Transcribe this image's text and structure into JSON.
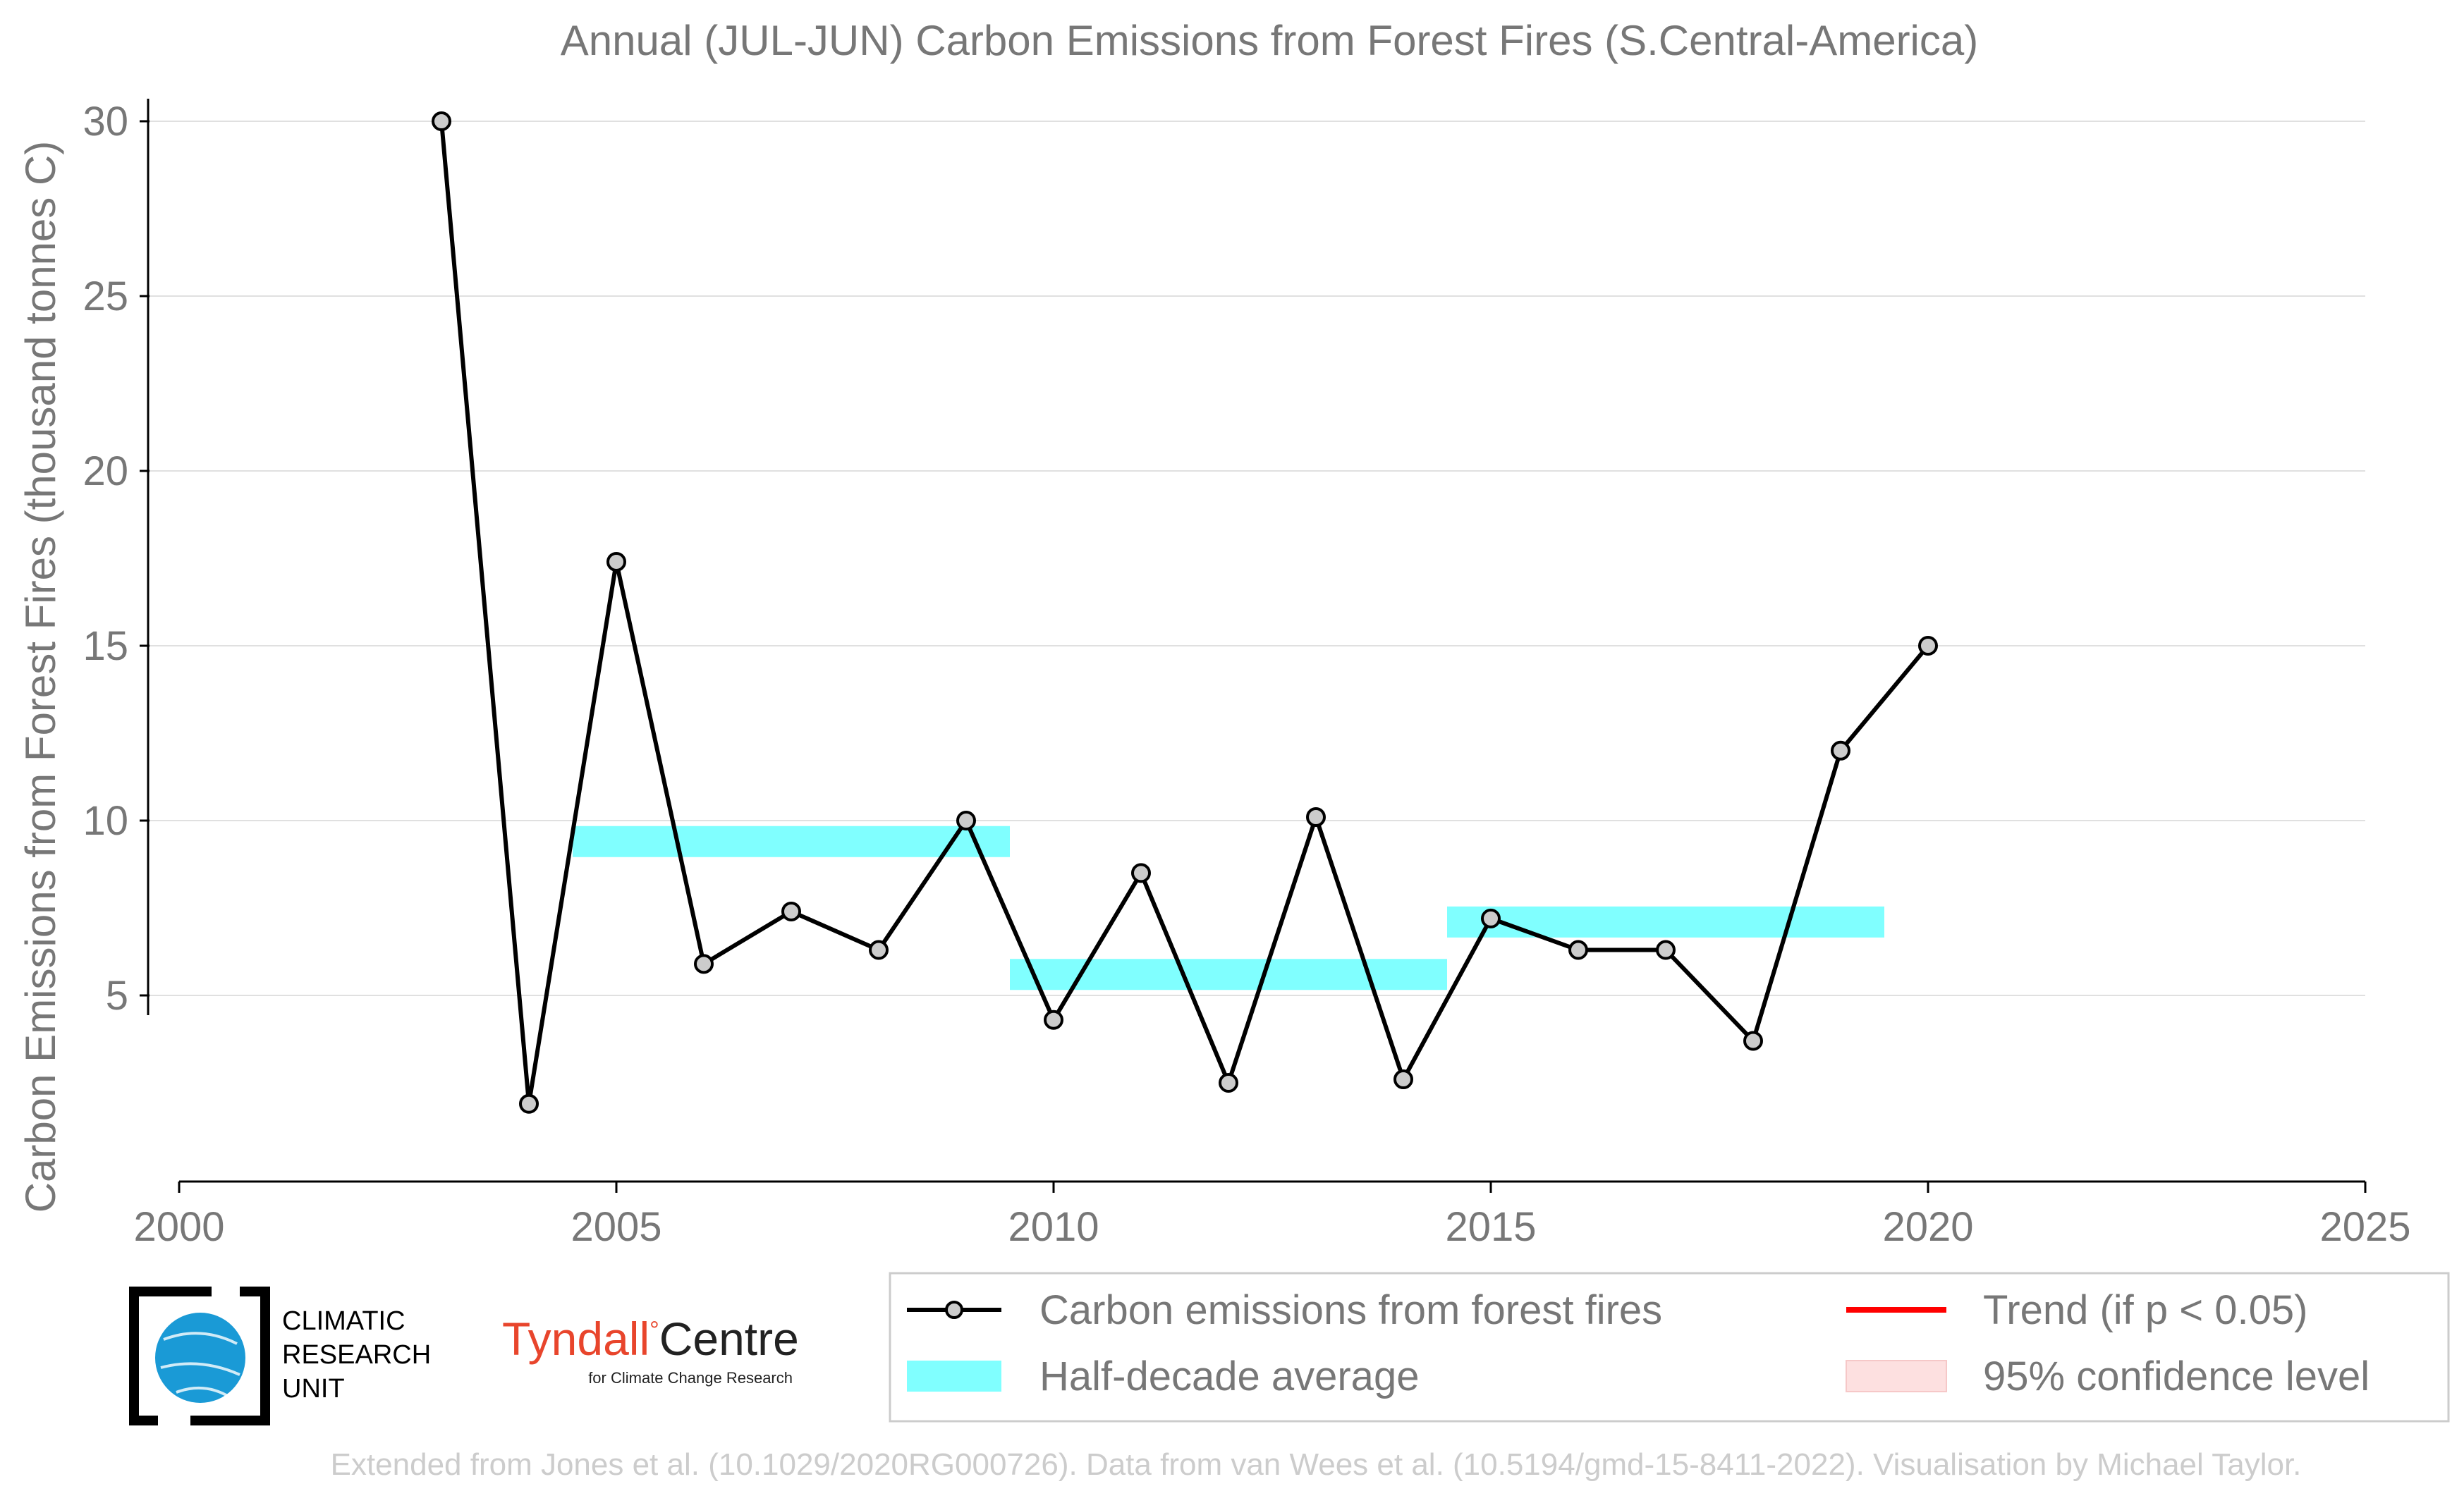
{
  "chart_data": {
    "type": "line",
    "title": "Annual (JUL-JUN) Carbon Emissions from Forest Fires (S.Central-America)",
    "xlabel": "",
    "ylabel": "Carbon Emissions from Forest Fires (thousand tonnes C)",
    "xlim": [
      2000,
      2025
    ],
    "ylim": [
      0,
      31
    ],
    "x_ticks": [
      "2000",
      "2005",
      "2010",
      "2015",
      "2020",
      "2025"
    ],
    "y_ticks": [
      "5",
      "10",
      "15",
      "20",
      "25",
      "30"
    ],
    "grid": "horizontal",
    "series": [
      {
        "name": "Carbon emissions from forest fires",
        "x": [
          2003,
          2004,
          2005,
          2006,
          2007,
          2008,
          2009,
          2010,
          2011,
          2012,
          2013,
          2014,
          2015,
          2016,
          2017,
          2018,
          2019,
          2020
        ],
        "values": [
          30.0,
          1.9,
          17.4,
          5.9,
          7.4,
          6.3,
          10.0,
          4.3,
          8.5,
          2.5,
          10.1,
          2.6,
          7.2,
          6.3,
          6.3,
          3.7,
          12.0,
          15.0
        ],
        "color": "#000000"
      }
    ],
    "half_decade_averages": [
      {
        "x_start": 2004.5,
        "x_end": 2009.5,
        "value": 9.4
      },
      {
        "x_start": 2009.5,
        "x_end": 2014.5,
        "value": 5.6
      },
      {
        "x_start": 2014.5,
        "x_end": 2019.5,
        "value": 7.1
      }
    ],
    "legend": {
      "placement": "bottom-right",
      "entries": [
        {
          "label": "Carbon emissions from forest fires",
          "kind": "line-marker",
          "color": "#000000"
        },
        {
          "label": "Trend (if p < 0.05)",
          "kind": "line",
          "color": "#ff0000"
        },
        {
          "label": "Half-decade average",
          "kind": "band",
          "color": "#80ffff"
        },
        {
          "label": "95% confidence level",
          "kind": "band",
          "color": "#fde0e0"
        }
      ]
    },
    "footer": "Extended from Jones et al. (10.1029/2020RG000726). Data from van Wees et al. (10.5194/gmd-15-8411-2022). Visualisation by Michael Taylor."
  },
  "logos": {
    "cru_lines": [
      "CLIMATIC",
      "RESEARCH",
      "UNIT"
    ],
    "tyndall_name": "Tyndall",
    "tyndall_centre": "Centre",
    "tyndall_sub": "for Climate Change Research"
  },
  "colors": {
    "series": "#000000",
    "marker_fill": "#cccccc",
    "half_decade": "#80ffff",
    "trend": "#ff0000",
    "confidence": "#fde0e0",
    "grid": "#e0e0e0",
    "text": "#777777",
    "tyndall_red": "#e8452c",
    "cru_blue": "#1a9ad6"
  }
}
